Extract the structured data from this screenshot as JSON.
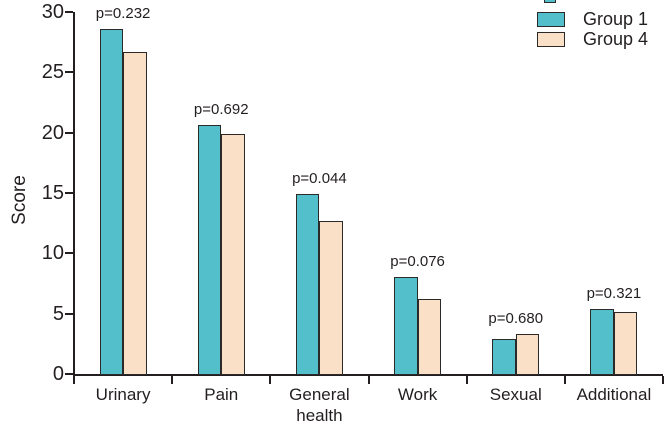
{
  "chart_data": {
    "type": "bar",
    "title": "",
    "xlabel": "",
    "ylabel": "Score",
    "ylim": [
      0,
      30
    ],
    "yticks": [
      0,
      5,
      10,
      15,
      20,
      25,
      30
    ],
    "grid": false,
    "legend_position": "top-right",
    "categories": [
      "Urinary",
      "Pain",
      "General health",
      "Work",
      "Sexual",
      "Additional"
    ],
    "series": [
      {
        "name": "Group 1",
        "color": "#53bfca",
        "values": [
          28.6,
          20.6,
          14.9,
          8.0,
          2.9,
          5.4
        ]
      },
      {
        "name": "Group 4",
        "color": "#fbe0c8",
        "values": [
          26.7,
          19.9,
          12.7,
          6.2,
          3.3,
          5.1
        ]
      }
    ],
    "p_values": [
      "p=0.232",
      "p=0.692",
      "p=0.044",
      "p=0.076",
      "p=0.680",
      "p=0.321"
    ],
    "colors": {
      "axis": "#231f20",
      "text": "#231f20",
      "bar_border": "#2b2a29",
      "background": "#ffffff"
    }
  }
}
